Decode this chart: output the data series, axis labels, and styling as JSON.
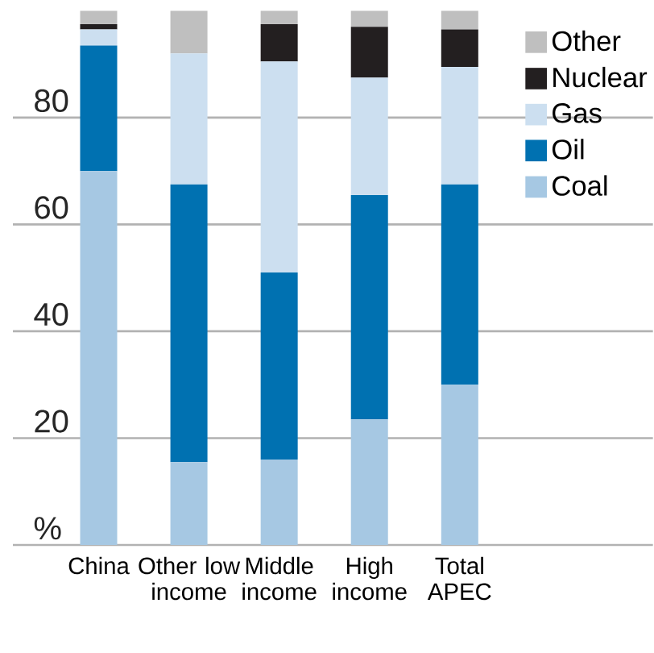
{
  "chart_data": {
    "type": "bar",
    "stacked": true,
    "categories": [
      "China",
      "Other low income",
      "Middle income",
      "High income",
      "Total APEC"
    ],
    "series": [
      {
        "name": "Coal",
        "color": "#a6c8e3",
        "values": [
          70,
          15.5,
          16,
          23.5,
          30
        ]
      },
      {
        "name": "Oil",
        "color": "#0071b1",
        "values": [
          23.5,
          52,
          35,
          42,
          37.5
        ]
      },
      {
        "name": "Gas",
        "color": "#ccdff0",
        "values": [
          3,
          24.5,
          39.5,
          22,
          22
        ]
      },
      {
        "name": "Nuclear",
        "color": "#231f20",
        "values": [
          1,
          0,
          7,
          9.5,
          7
        ]
      },
      {
        "name": "Other",
        "color": "#bfbfbf",
        "values": [
          2.5,
          8,
          2.5,
          3,
          3.5
        ]
      }
    ],
    "ylim": [
      0,
      100
    ],
    "yticks": [
      {
        "value": 0,
        "label": "%"
      },
      20,
      40,
      60,
      80
    ],
    "grid": "y",
    "legend": "top right"
  }
}
